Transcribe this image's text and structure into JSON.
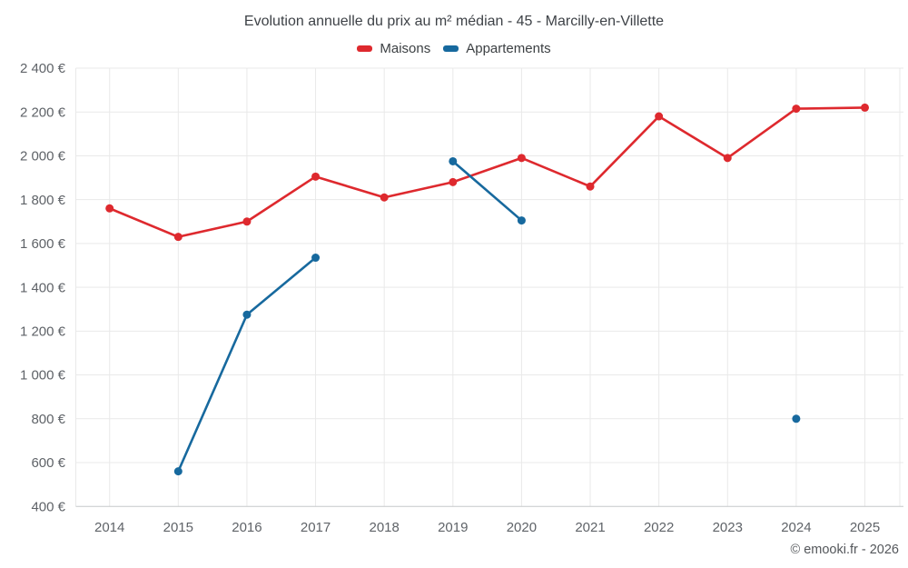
{
  "chart": {
    "copyright": "© emooki.fr - 2026"
  },
  "legend": {
    "items": [
      {
        "label": "Maisons",
        "color": "#de292e"
      },
      {
        "label": "Appartements",
        "color": "#17699e"
      }
    ]
  },
  "chart_data": {
    "type": "line",
    "title": "Evolution annuelle du prix au m² médian - 45 - Marcilly-en-Villette",
    "xlabel": "",
    "ylabel": "",
    "categories": [
      "2014",
      "2015",
      "2016",
      "2017",
      "2018",
      "2019",
      "2020",
      "2021",
      "2022",
      "2023",
      "2024",
      "2025"
    ],
    "series": [
      {
        "name": "Maisons",
        "color": "#de292e",
        "values": [
          1760,
          1630,
          1700,
          1905,
          1810,
          1880,
          1990,
          1860,
          2180,
          1990,
          2215,
          2220
        ]
      },
      {
        "name": "Appartements",
        "color": "#17699e",
        "values": [
          null,
          560,
          1275,
          1535,
          null,
          1975,
          1705,
          null,
          null,
          null,
          800,
          null
        ]
      }
    ],
    "ylim": [
      400,
      2400
    ],
    "y_tick_step": 200,
    "y_ticks": [
      {
        "value": 400,
        "label": "400 €"
      },
      {
        "value": 600,
        "label": "600 €"
      },
      {
        "value": 800,
        "label": "800 €"
      },
      {
        "value": 1000,
        "label": "1 000 €"
      },
      {
        "value": 1200,
        "label": "1 200 €"
      },
      {
        "value": 1400,
        "label": "1 400 €"
      },
      {
        "value": 1600,
        "label": "1 600 €"
      },
      {
        "value": 1800,
        "label": "1 800 €"
      },
      {
        "value": 2000,
        "label": "2 000 €"
      },
      {
        "value": 2200,
        "label": "2 200 €"
      },
      {
        "value": 2400,
        "label": "2 400 €"
      }
    ],
    "grid": true,
    "legend_position": "top",
    "point_markers": true
  }
}
